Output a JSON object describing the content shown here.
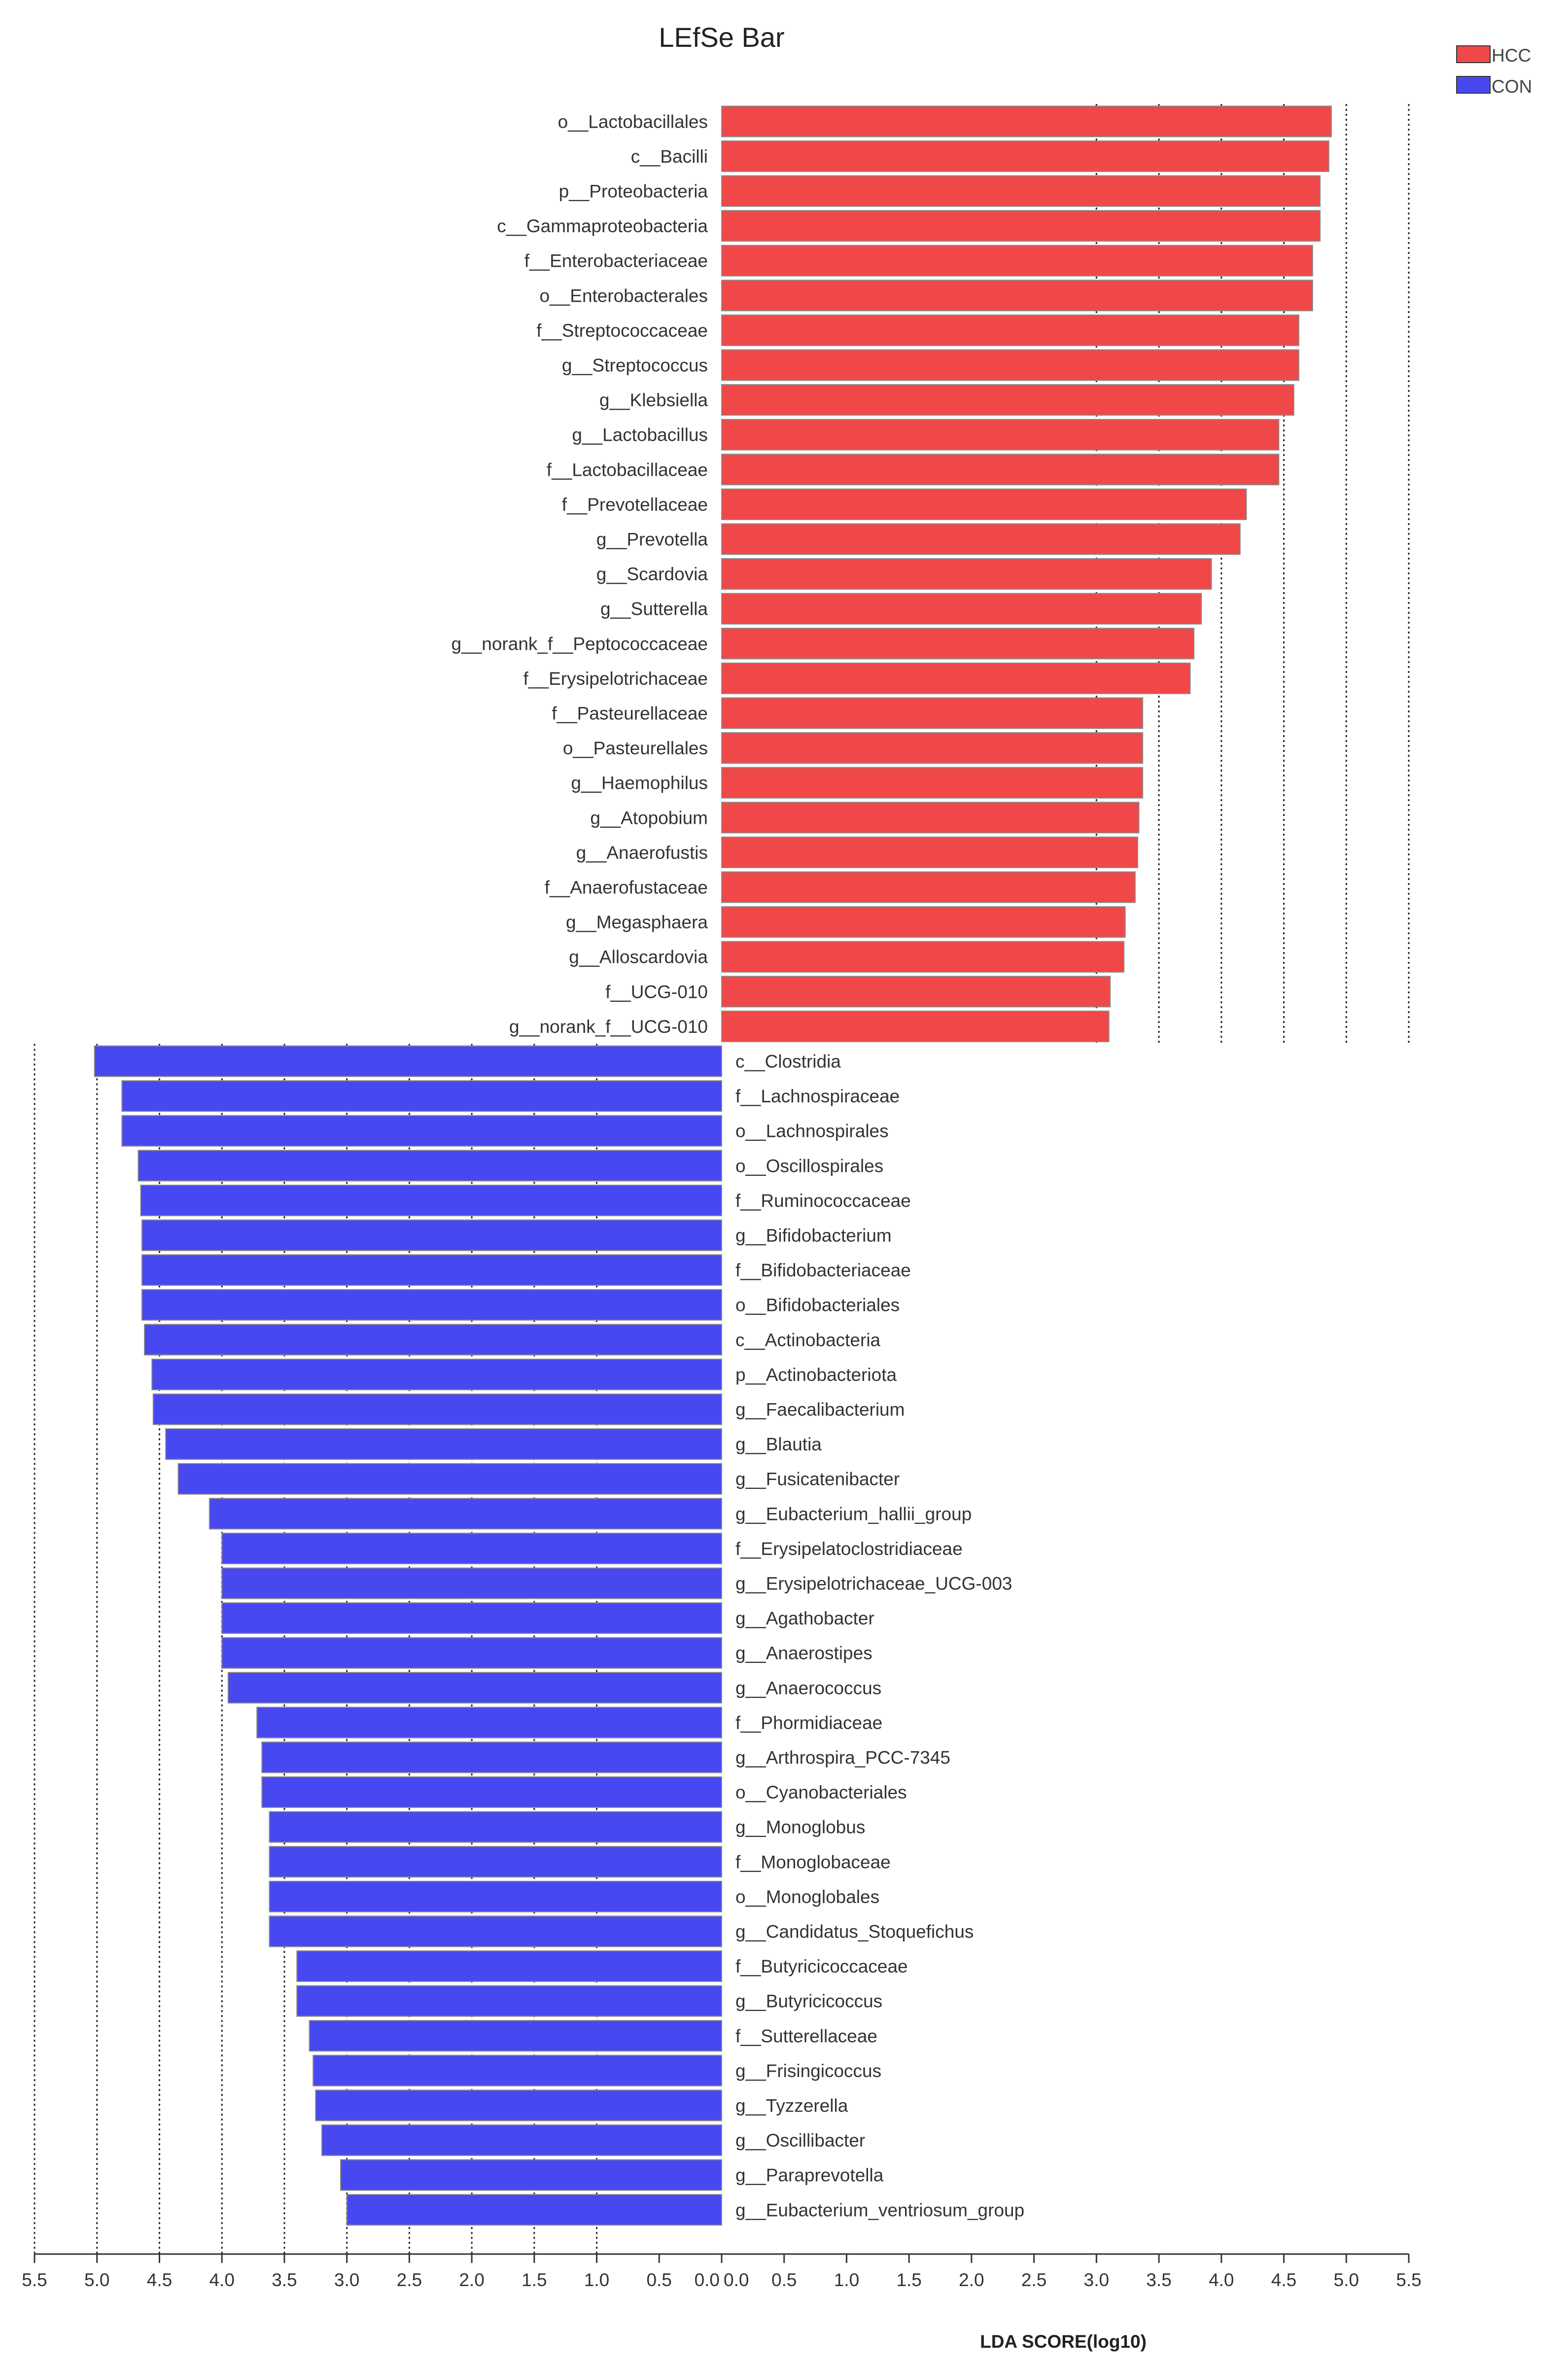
{
  "chart_data": {
    "type": "bar",
    "title": "LEfSe Bar",
    "xlabel": "LDA SCORE(log10)",
    "xlim": [
      -5.5,
      5.5
    ],
    "left_ticks": [
      "5.5",
      "5.0",
      "4.5",
      "4.0",
      "3.5",
      "3.0",
      "2.5",
      "2.0",
      "1.5",
      "1.0",
      "0.5",
      "0.0"
    ],
    "right_ticks": [
      "0.0",
      "0.5",
      "1.0",
      "1.5",
      "2.0",
      "2.5",
      "3.0",
      "3.5",
      "4.0",
      "4.5",
      "5.0",
      "5.5"
    ],
    "legend": [
      {
        "name": "HCC",
        "color": "#f04848"
      },
      {
        "name": "CON",
        "color": "#4848f0"
      }
    ],
    "series": [
      {
        "name": "HCC",
        "color": "#f04848",
        "categories": [
          "o__Lactobacillales",
          "c__Bacilli",
          "p__Proteobacteria",
          "c__Gammaproteobacteria",
          "f__Enterobacteriaceae",
          "o__Enterobacterales",
          "f__Streptococcaceae",
          "g__Streptococcus",
          "g__Klebsiella",
          "g__Lactobacillus",
          "f__Lactobacillaceae",
          "f__Prevotellaceae",
          "g__Prevotella",
          "g__Scardovia",
          "g__Sutterella",
          "g__norank_f__Peptococcaceae",
          "f__Erysipelotrichaceae",
          "f__Pasteurellaceae",
          "o__Pasteurellales",
          "g__Haemophilus",
          "g__Atopobium",
          "g__Anaerofustis",
          "f__Anaerofustaceae",
          "g__Megasphaera",
          "g__Alloscardovia",
          "f__UCG-010",
          "g__norank_f__UCG-010"
        ],
        "values": [
          4.88,
          4.86,
          4.79,
          4.79,
          4.73,
          4.73,
          4.62,
          4.62,
          4.58,
          4.46,
          4.46,
          4.2,
          4.15,
          3.92,
          3.84,
          3.78,
          3.75,
          3.37,
          3.37,
          3.37,
          3.34,
          3.33,
          3.31,
          3.23,
          3.22,
          3.11,
          3.1
        ]
      },
      {
        "name": "CON",
        "color": "#4848f0",
        "categories": [
          "c__Clostridia",
          "f__Lachnospiraceae",
          "o__Lachnospirales",
          "o__Oscillospirales",
          "f__Ruminococcaceae",
          "g__Bifidobacterium",
          "f__Bifidobacteriaceae",
          "o__Bifidobacteriales",
          "c__Actinobacteria",
          "p__Actinobacteriota",
          "g__Faecalibacterium",
          "g__Blautia",
          "g__Fusicatenibacter",
          "g__Eubacterium_hallii_group",
          "f__Erysipelatoclostridiaceae",
          "g__Erysipelotrichaceae_UCG-003",
          "g__Agathobacter",
          "g__Anaerostipes",
          "g__Anaerococcus",
          "f__Phormidiaceae",
          "g__Arthrospira_PCC-7345",
          "o__Cyanobacteriales",
          "g__Monoglobus",
          "f__Monoglobaceae",
          "o__Monoglobales",
          "g__Candidatus_Stoquefichus",
          "f__Butyricicoccaceae",
          "g__Butyricicoccus",
          "f__Sutterellaceae",
          "g__Frisingicoccus",
          "g__Tyzzerella",
          "g__Oscillibacter",
          "g__Paraprevotella",
          "g__Eubacterium_ventriosum_group"
        ],
        "values": [
          5.02,
          4.8,
          4.8,
          4.67,
          4.65,
          4.64,
          4.64,
          4.64,
          4.62,
          4.56,
          4.55,
          4.45,
          4.35,
          4.1,
          4.0,
          4.0,
          4.0,
          4.0,
          3.95,
          3.72,
          3.68,
          3.68,
          3.62,
          3.62,
          3.62,
          3.62,
          3.4,
          3.4,
          3.3,
          3.27,
          3.25,
          3.2,
          3.05,
          3.0
        ]
      }
    ]
  }
}
